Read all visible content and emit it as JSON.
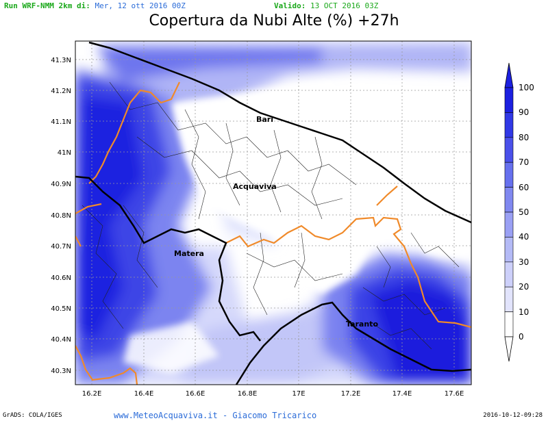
{
  "header": {
    "run_label": "Run WRF-NMM 2km di:",
    "run_value": "Mer, 12 ott 2016 00Z",
    "valid_label": "Valido:",
    "valid_value": "13 OCT 2016 03Z"
  },
  "title": "Copertura da Nubi Alte (%) +27h",
  "axes": {
    "lat_labels": [
      "41.3N",
      "41.2N",
      "41.1N",
      "41N",
      "40.9N",
      "40.8N",
      "40.7N",
      "40.6N",
      "40.5N",
      "40.4N",
      "40.3N"
    ],
    "lon_labels": [
      "16.2E",
      "16.4E",
      "16.6E",
      "16.8E",
      "17E",
      "17.2E",
      "17.4E",
      "17.6E"
    ]
  },
  "cities": [
    "Bari",
    "Acquaviva",
    "Matera",
    "Taranto"
  ],
  "colorbar": {
    "labels": [
      "100",
      "90",
      "80",
      "70",
      "60",
      "50",
      "40",
      "30",
      "20",
      "10",
      "0"
    ],
    "colors": [
      "#1c20e0",
      "#3038e6",
      "#4a50ea",
      "#6670ee",
      "#8088f0",
      "#9aa0f4",
      "#b4baf6",
      "#cdd0fa",
      "#e2e4fc",
      "#ffffff"
    ]
  },
  "footer": {
    "left": "GrADS: COLA/IGES",
    "center": "www.MeteoAcquaviva.it - Giacomo Tricarico",
    "right": "2016-10-12-09:28"
  }
}
